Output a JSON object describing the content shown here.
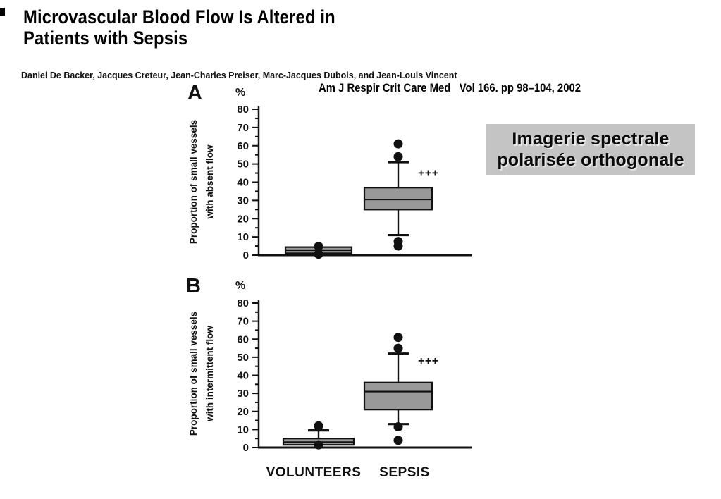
{
  "header": {
    "title_line1": "Microvascular Blood Flow Is Altered in",
    "title_line2": "Patients with Sepsis",
    "authors": "Daniel De Backer, Jacques Creteur, Jean-Charles Preiser, Marc-Jacques Dubois, and Jean-Louis Vincent",
    "citation": "Am J Respir Crit Care Med   Vol 166. pp 98–104, 2002"
  },
  "overlay": {
    "line1": "Imagerie spectrale",
    "line2": "polarisée orthogonale",
    "background": "#c4c4c4",
    "text_color": "#0a0a0a"
  },
  "chart_data": [
    {
      "type": "boxplot",
      "panel": "A",
      "unit": "%",
      "ylabel": [
        "Proportion of small vessels",
        "with absent flow"
      ],
      "ylim": [
        0,
        80
      ],
      "ytick_step": 10,
      "ytick_minor_step": 5,
      "grid": false,
      "legend": "none",
      "categories": [
        "VOLUNTEERS",
        "SEPSIS"
      ],
      "series": [
        {
          "name": "VOLUNTEERS",
          "q1": 1,
          "median": 2.7,
          "q3": 4.4,
          "whisker_low": null,
          "whisker_high": null,
          "outliers": [
            4.8,
            0.5
          ]
        },
        {
          "name": "SEPSIS",
          "q1": 25,
          "median": 30.5,
          "q3": 37,
          "whisker_low": 11,
          "whisker_high": 51,
          "outliers": [
            54,
            61,
            7.5,
            5
          ],
          "significance": "+++",
          "significance_y": 45
        }
      ],
      "box_fill": "#999999",
      "line_color": "#111111"
    },
    {
      "type": "boxplot",
      "panel": "B",
      "unit": "%",
      "ylabel": [
        "Proportion of small vessels",
        "with intermittent flow"
      ],
      "ylim": [
        0,
        80
      ],
      "ytick_step": 10,
      "ytick_minor_step": 5,
      "grid": false,
      "legend": "none",
      "categories": [
        "VOLUNTEERS",
        "SEPSIS"
      ],
      "series": [
        {
          "name": "VOLUNTEERS",
          "q1": 1.5,
          "median": 3,
          "q3": 5,
          "whisker_low": null,
          "whisker_high": 9.5,
          "outliers": [
            12,
            1.5
          ]
        },
        {
          "name": "SEPSIS",
          "q1": 21,
          "median": 31,
          "q3": 36,
          "whisker_low": 13,
          "whisker_high": 52,
          "outliers": [
            55,
            61,
            11.5,
            4
          ],
          "significance": "+++",
          "significance_y": 48
        }
      ],
      "box_fill": "#999999",
      "line_color": "#111111"
    }
  ]
}
